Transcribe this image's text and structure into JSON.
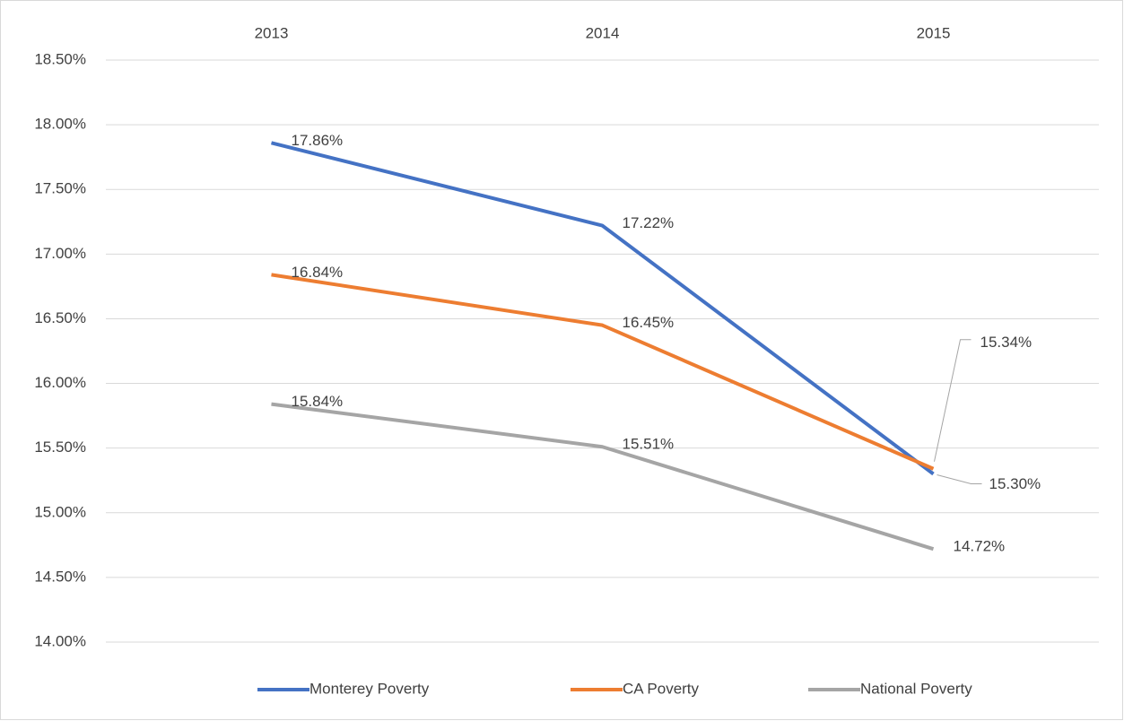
{
  "chart_data": {
    "type": "line",
    "categories": [
      "2013",
      "2014",
      "2015"
    ],
    "series": [
      {
        "name": "Monterey Poverty",
        "color": "#4472c4",
        "values": [
          17.86,
          17.22,
          15.3
        ],
        "value_labels": [
          "17.86%",
          "17.22%",
          "15.30%"
        ]
      },
      {
        "name": "CA Poverty",
        "color": "#ed7d31",
        "values": [
          16.84,
          16.45,
          15.34
        ],
        "value_labels": [
          "16.84%",
          "16.45%",
          "15.34%"
        ]
      },
      {
        "name": "National Poverty",
        "color": "#a5a5a5",
        "values": [
          15.84,
          15.51,
          14.72
        ],
        "value_labels": [
          "15.84%",
          "15.51%",
          "14.72%"
        ]
      }
    ],
    "ylim": [
      14.0,
      18.5
    ],
    "yticks": [
      {
        "value": 14.0,
        "label": "14.00%"
      },
      {
        "value": 14.5,
        "label": "14.50%"
      },
      {
        "value": 15.0,
        "label": "15.00%"
      },
      {
        "value": 15.5,
        "label": "15.50%"
      },
      {
        "value": 16.0,
        "label": "16.00%"
      },
      {
        "value": 16.5,
        "label": "16.50%"
      },
      {
        "value": 17.0,
        "label": "17.00%"
      },
      {
        "value": 17.5,
        "label": "17.50%"
      },
      {
        "value": 18.0,
        "label": "18.00%"
      },
      {
        "value": 18.5,
        "label": "18.50%"
      }
    ],
    "grid": true,
    "legend": "bottom"
  }
}
